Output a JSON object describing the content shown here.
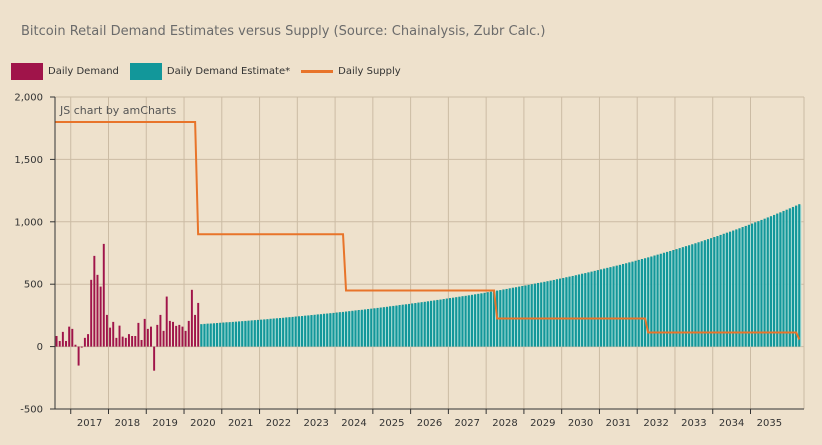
{
  "chart_data": {
    "type": "bar",
    "title": "Bitcoin Retail Demand Estimates versus Supply (Source: Chainalysis, Zubr Calc.)",
    "credit": "JS chart by amCharts",
    "x_range": [
      "2016-08",
      "2036-05"
    ],
    "x_tick_labels": [
      "2017",
      "2018",
      "2019",
      "2020",
      "2021",
      "2022",
      "2023",
      "2024",
      "2025",
      "2026",
      "2027",
      "2028",
      "2029",
      "2030",
      "2031",
      "2032",
      "2033",
      "2034",
      "2035"
    ],
    "ylim": [
      -500,
      2000
    ],
    "y_ticks": [
      -500,
      0,
      500,
      1000,
      1500,
      2000
    ],
    "y_tick_labels": [
      "-500",
      "0",
      "500",
      "1,000",
      "1,500",
      "2,000"
    ],
    "grid": true,
    "legend_position": "top-left",
    "series": [
      {
        "name": "Daily Demand",
        "kind": "bar",
        "color": "#a0144a",
        "start": "2016-08",
        "values": [
          85,
          45,
          118,
          45,
          160,
          142,
          15,
          -152,
          -8,
          70,
          100,
          535,
          727,
          575,
          481,
          823,
          254,
          152,
          198,
          70,
          168,
          80,
          70,
          100,
          85,
          85,
          190,
          53,
          222,
          142,
          160,
          -193,
          174,
          254,
          126,
          401,
          206,
          198,
          166,
          174,
          160,
          126,
          206,
          455,
          254,
          350
        ]
      },
      {
        "name": "Daily Demand Estimate*",
        "kind": "bar",
        "color": "#12979a",
        "start": "2020-06",
        "values": [
          180,
          182,
          184,
          185,
          187,
          189,
          191,
          193,
          195,
          196,
          198,
          200,
          202,
          204,
          206,
          208,
          210,
          212,
          214,
          216,
          218,
          220,
          223,
          225,
          227,
          229,
          231,
          234,
          236,
          238,
          241,
          243,
          245,
          248,
          250,
          253,
          255,
          258,
          260,
          263,
          265,
          268,
          270,
          273,
          276,
          278,
          281,
          284,
          287,
          290,
          293,
          295,
          298,
          301,
          304,
          307,
          310,
          313,
          316,
          319,
          323,
          326,
          329,
          333,
          336,
          339,
          342,
          346,
          349,
          353,
          356,
          359,
          363,
          367,
          370,
          374,
          377,
          381,
          385,
          389,
          392,
          396,
          400,
          404,
          407,
          411,
          415,
          419,
          423,
          427,
          431,
          436,
          440,
          444,
          449,
          453,
          458,
          462,
          467,
          472,
          476,
          481,
          486,
          490,
          495,
          500,
          505,
          510,
          514,
          519,
          524,
          529,
          534,
          540,
          545,
          550,
          556,
          561,
          566,
          572,
          578,
          584,
          589,
          595,
          601,
          607,
          613,
          619,
          625,
          631,
          637,
          643,
          649,
          655,
          662,
          668,
          675,
          681,
          688,
          695,
          702,
          708,
          715,
          722,
          730,
          737,
          744,
          752,
          759,
          766,
          774,
          781,
          789,
          797,
          805,
          812,
          820,
          828,
          836,
          844,
          853,
          861,
          869,
          878,
          886,
          895,
          904,
          913,
          921,
          930,
          939,
          948,
          958,
          967,
          976,
          986,
          996,
          1005,
          1015,
          1025,
          1035,
          1045,
          1055,
          1066,
          1076,
          1087,
          1097,
          1108,
          1119,
          1130,
          1141
        ]
      },
      {
        "name": "Daily Supply",
        "kind": "step-line",
        "color": "#e8742a",
        "steps": [
          {
            "from": "2016-08",
            "to": "2020-05",
            "value": 1800
          },
          {
            "from": "2020-05",
            "to": "2024-04",
            "value": 900
          },
          {
            "from": "2024-04",
            "to": "2028-04",
            "value": 450
          },
          {
            "from": "2028-04",
            "to": "2032-04",
            "value": 225
          },
          {
            "from": "2032-04",
            "to": "2036-04",
            "value": 112.5
          },
          {
            "from": "2036-04",
            "to": "2036-05",
            "value": 60
          }
        ]
      }
    ]
  }
}
